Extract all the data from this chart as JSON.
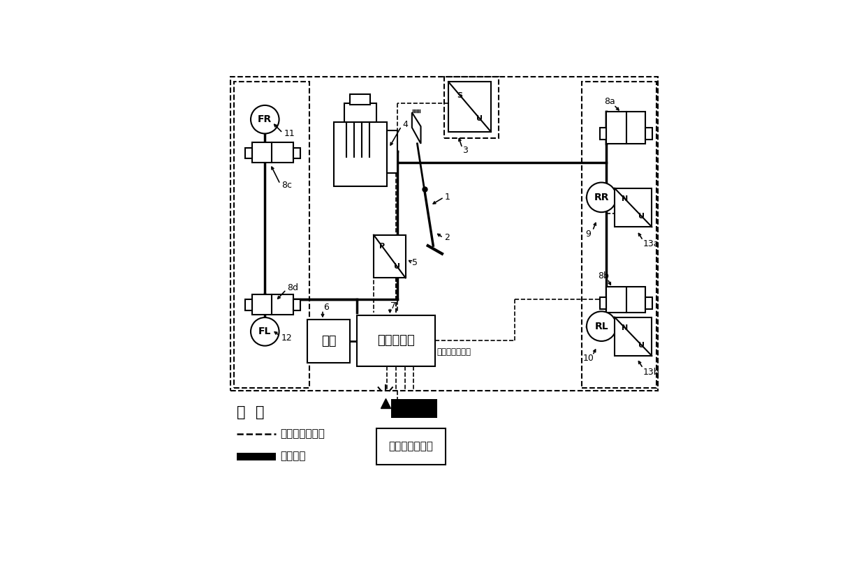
{
  "background_color": "#ffffff",
  "fig_width": 12.4,
  "fig_height": 8.17,
  "legend": {
    "title": "图  例",
    "dashed_label": "信号线和电源线",
    "solid_label": "制动管路"
  },
  "power_label": "电源",
  "controller_label": "制动控制器",
  "radar_label": "雷达、摄像头等",
  "zhi_label": "至其它电控系统"
}
